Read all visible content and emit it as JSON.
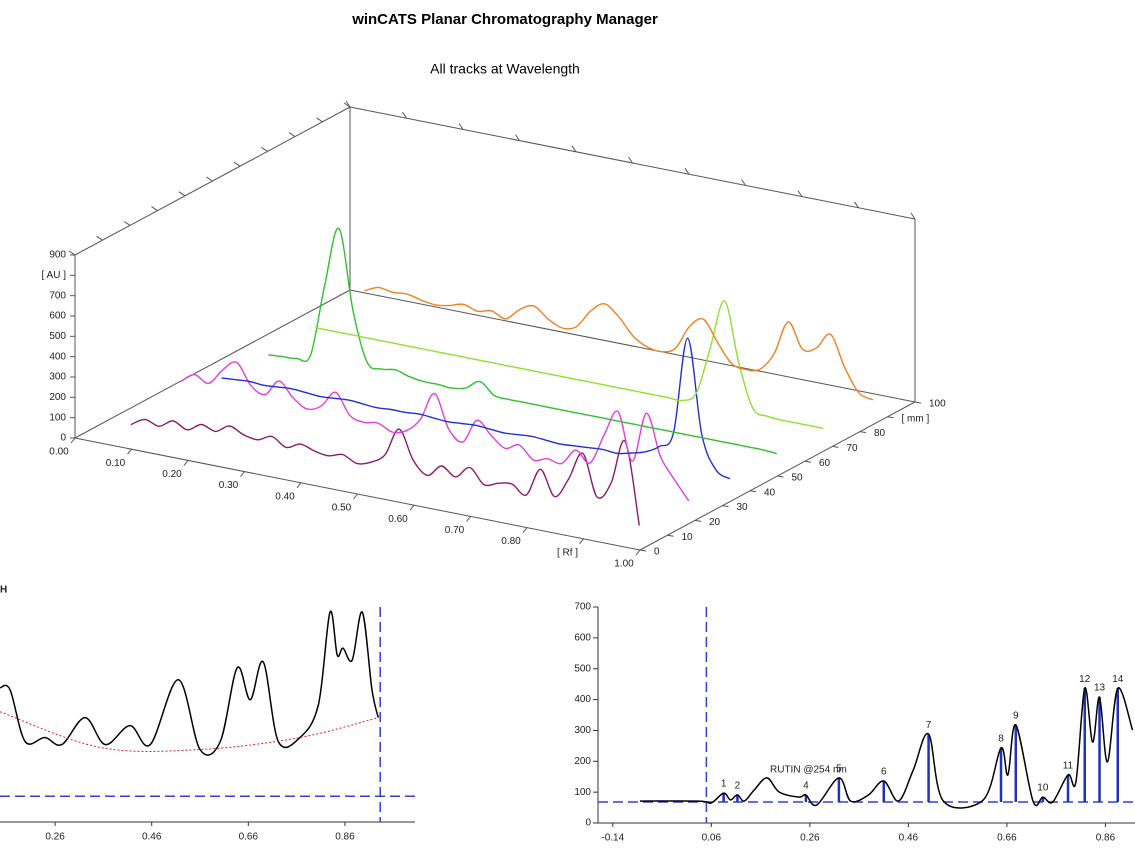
{
  "chart_data": [
    {
      "type": "line3d",
      "title": "winCATS Planar Chromatography Manager",
      "subtitle": "All tracks at Wavelength",
      "x": [
        0.05,
        0.075,
        0.1,
        0.125,
        0.15,
        0.175,
        0.2,
        0.225,
        0.25,
        0.275,
        0.3,
        0.325,
        0.35,
        0.375,
        0.4,
        0.425,
        0.45,
        0.475,
        0.5,
        0.525,
        0.55,
        0.575,
        0.6,
        0.625,
        0.65,
        0.675,
        0.7,
        0.725,
        0.75,
        0.775,
        0.8,
        0.825,
        0.85,
        0.875,
        0.9,
        0.925,
        0.95
      ],
      "xlim": [
        0,
        1
      ],
      "xticks": [
        {
          "value": 0,
          "label": "0.00"
        },
        {
          "value": 0.1,
          "label": "0.10"
        },
        {
          "value": 0.2,
          "label": "0.20"
        },
        {
          "value": 0.3,
          "label": "0.30"
        },
        {
          "value": 0.4,
          "label": "0.40"
        },
        {
          "value": 0.5,
          "label": "0.50"
        },
        {
          "value": 0.6,
          "label": "0.60"
        },
        {
          "value": 0.7,
          "label": "0.70"
        },
        {
          "value": 0.8,
          "label": "0.80"
        },
        {
          "value": 0.9,
          "label": "[ Rf ]"
        },
        {
          "value": 1,
          "label": "1.00"
        }
      ],
      "ylim": [
        0,
        900
      ],
      "yticks": [
        0,
        100,
        200,
        300,
        400,
        500,
        600,
        700,
        {
          "value": 800,
          "label": "[ AU ]"
        },
        900
      ],
      "zlim": [
        0,
        100
      ],
      "zticks": [
        0,
        10,
        20,
        30,
        40,
        50,
        60,
        70,
        80,
        {
          "value": 90,
          "label": "[ mm ]"
        },
        100
      ],
      "series": [
        {
          "color": "#8b1a6b",
          "z": 10,
          "values": [
            20,
            60,
            40,
            80,
            50,
            90,
            70,
            110,
            80,
            70,
            100,
            60,
            90,
            70,
            60,
            80,
            50,
            70,
            120,
            260,
            120,
            60,
            120,
            80,
            140,
            70,
            90,
            100,
            60,
            200,
            80,
            180,
            320,
            120,
            200,
            420,
            20
          ]
        },
        {
          "color": "#e040e0",
          "z": 28,
          "values": [
            100,
            150,
            120,
            200,
            250,
            150,
            120,
            200,
            130,
            90,
            120,
            200,
            100,
            80,
            90,
            60,
            80,
            150,
            290,
            130,
            80,
            200,
            140,
            90,
            120,
            60,
            80,
            70,
            150,
            100,
            250,
            380,
            150,
            400,
            200,
            100,
            10
          ]
        },
        {
          "color": "#2030d0",
          "z": 43,
          "values": [
            10,
            15,
            20,
            15,
            20,
            25,
            20,
            15,
            20,
            25,
            20,
            15,
            20,
            20,
            25,
            20,
            15,
            20,
            25,
            20,
            15,
            20,
            25,
            20,
            15,
            20,
            25,
            30,
            25,
            40,
            60,
            100,
            180,
            660,
            200,
            40,
            10
          ]
        },
        {
          "color": "#30c030",
          "z": 60,
          "values": [
            0,
            5,
            10,
            40,
            400,
            690,
            300,
            60,
            40,
            50,
            30,
            20,
            20,
            15,
            30,
            75,
            20,
            15,
            15,
            15,
            15,
            15,
            15,
            15,
            15,
            15,
            15,
            15,
            15,
            15,
            15,
            15,
            15,
            15,
            15,
            15,
            10
          ]
        },
        {
          "color": "#90e030",
          "z": 77,
          "values": [
            10,
            10,
            10,
            10,
            10,
            10,
            10,
            10,
            10,
            10,
            10,
            10,
            10,
            10,
            10,
            10,
            10,
            10,
            10,
            10,
            10,
            10,
            10,
            10,
            10,
            10,
            10,
            60,
            300,
            540,
            250,
            40,
            15,
            10,
            10,
            10,
            10
          ]
        },
        {
          "color": "#f08020",
          "z": 95,
          "values": [
            60,
            90,
            80,
            85,
            70,
            60,
            70,
            90,
            70,
            85,
            60,
            120,
            150,
            100,
            70,
            90,
            180,
            230,
            180,
            100,
            60,
            50,
            80,
            200,
            250,
            150,
            60,
            45,
            60,
            150,
            320,
            200,
            220,
            300,
            150,
            40,
            20
          ]
        }
      ]
    },
    {
      "type": "line",
      "title": "H",
      "xlim": [
        0.146,
        1.005
      ],
      "xticks": [
        0.26,
        0.46,
        0.66,
        0.86
      ],
      "ylim": [
        0,
        700
      ],
      "hline": 84,
      "vline": 0.933,
      "series": [
        {
          "color": "#000000",
          "x": [
            0.146,
            0.167,
            0.198,
            0.239,
            0.274,
            0.322,
            0.364,
            0.415,
            0.457,
            0.515,
            0.56,
            0.602,
            0.637,
            0.664,
            0.691,
            0.722,
            0.767,
            0.805,
            0.829,
            0.844,
            0.856,
            0.875,
            0.896,
            0.916,
            0.929
          ],
          "values": [
            437,
            430,
            262,
            275,
            252,
            340,
            252,
            314,
            252,
            463,
            236,
            262,
            502,
            398,
            521,
            262,
            275,
            382,
            683,
            544,
            566,
            527,
            683,
            430,
            340
          ]
        },
        {
          "color": "#e02020",
          "style": "dotted",
          "x": [
            0.146,
            0.353,
            0.56,
            0.767,
            0.929
          ],
          "values": [
            359,
            243,
            236,
            275,
            340
          ]
        }
      ]
    },
    {
      "type": "line",
      "xlim": [
        -0.17,
        0.92
      ],
      "xticks": [
        -0.14,
        0.06,
        0.26,
        0.46,
        0.66,
        0.86
      ],
      "ylim": [
        0,
        700
      ],
      "yticks": [
        0,
        100,
        200,
        300,
        400,
        500,
        600,
        700
      ],
      "hline": 68,
      "vline": 0.05,
      "annotation": "RUTIN  @254 nm",
      "series": [
        {
          "color": "#000000",
          "x": [
            -0.085,
            0.036,
            0.06,
            0.085,
            0.099,
            0.113,
            0.127,
            0.147,
            0.173,
            0.198,
            0.238,
            0.252,
            0.274,
            0.319,
            0.343,
            0.379,
            0.41,
            0.44,
            0.47,
            0.501,
            0.531,
            0.612,
            0.648,
            0.662,
            0.678,
            0.713,
            0.733,
            0.753,
            0.784,
            0.8,
            0.818,
            0.834,
            0.848,
            0.864,
            0.885,
            0.915
          ],
          "values": [
            71,
            71,
            65,
            97,
            75,
            91,
            71,
            107,
            146,
            100,
            84,
            91,
            58,
            146,
            71,
            91,
            136,
            71,
            172,
            288,
            71,
            75,
            243,
            156,
            318,
            71,
            84,
            68,
            156,
            133,
            437,
            262,
            408,
            198,
            437,
            301
          ]
        }
      ],
      "peaks": [
        {
          "label": "1",
          "x": 0.085,
          "y": 97
        },
        {
          "label": "2",
          "x": 0.113,
          "y": 91
        },
        {
          "label": "4",
          "x": 0.252,
          "y": 91
        },
        {
          "label": "5",
          "x": 0.319,
          "y": 146
        },
        {
          "label": "6",
          "x": 0.41,
          "y": 136
        },
        {
          "label": "7",
          "x": 0.501,
          "y": 288
        },
        {
          "label": "8",
          "x": 0.648,
          "y": 243
        },
        {
          "label": "9",
          "x": 0.678,
          "y": 318
        },
        {
          "label": "10",
          "x": 0.733,
          "y": 84
        },
        {
          "label": "11",
          "x": 0.784,
          "y": 156
        },
        {
          "label": "12",
          "x": 0.818,
          "y": 437
        },
        {
          "label": "13",
          "x": 0.848,
          "y": 408
        },
        {
          "label": "14",
          "x": 0.885,
          "y": 437
        }
      ]
    }
  ]
}
